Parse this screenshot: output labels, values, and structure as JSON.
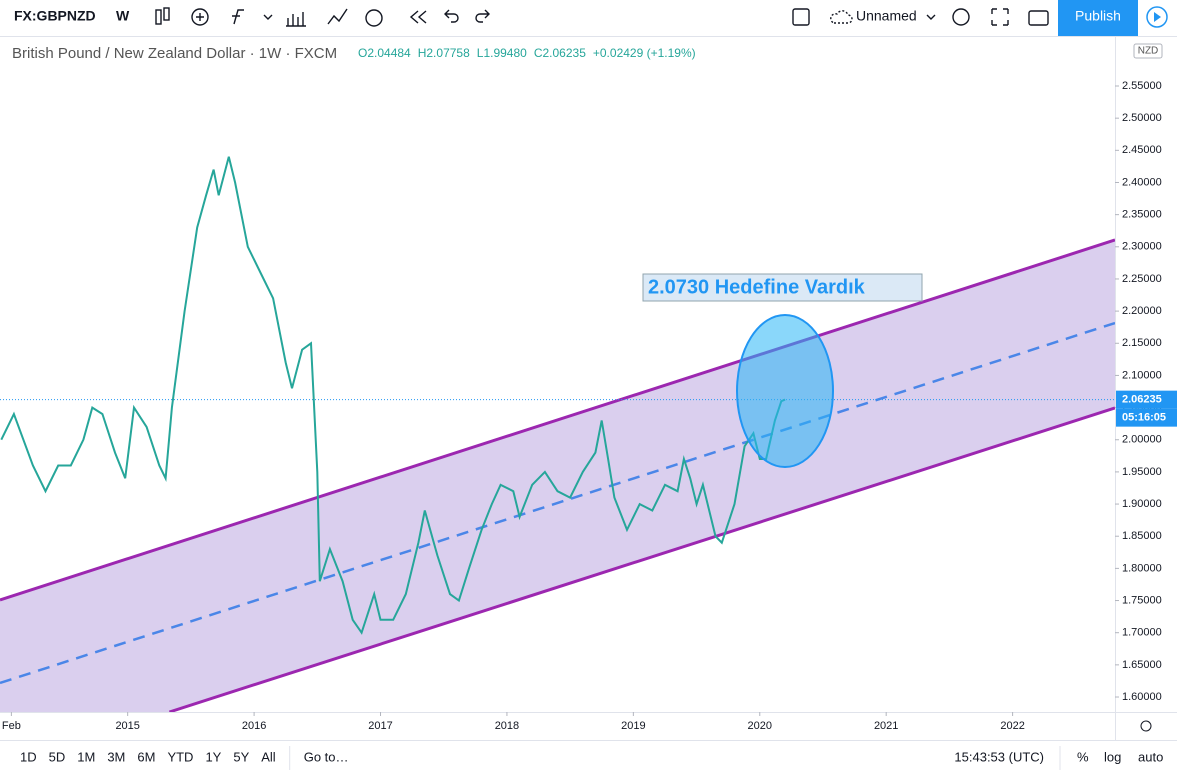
{
  "toolbar": {
    "symbol": "FX:GBPNZD",
    "interval": "W",
    "layout_name": "Unnamed",
    "publish": "Publish"
  },
  "chart_data": {
    "type": "line",
    "title": "British Pound / New Zealand Dollar · 1W · FXCM",
    "ohlc": {
      "open": "O2.04484",
      "high": "H2.07758",
      "low": "L1.99480",
      "close": "C2.06235",
      "change": "+0.02429 (+1.19%)"
    },
    "currency": "NZD",
    "color": "#26a69a",
    "x": [
      2014.0,
      2014.1,
      2014.25,
      2014.35,
      2014.45,
      2014.55,
      2014.65,
      2014.72,
      2014.8,
      2014.9,
      2014.98,
      2015.05,
      2015.15,
      2015.25,
      2015.3,
      2015.35,
      2015.45,
      2015.55,
      2015.62,
      2015.68,
      2015.72,
      2015.8,
      2015.85,
      2015.95,
      2016.05,
      2016.15,
      2016.25,
      2016.3,
      2016.38,
      2016.45,
      2016.5,
      2016.52,
      2016.6,
      2016.7,
      2016.78,
      2016.85,
      2016.95,
      2017.0,
      2017.1,
      2017.2,
      2017.3,
      2017.35,
      2017.45,
      2017.55,
      2017.62,
      2017.7,
      2017.8,
      2017.88,
      2017.95,
      2018.05,
      2018.1,
      2018.2,
      2018.3,
      2018.4,
      2018.5,
      2018.6,
      2018.7,
      2018.75,
      2018.8,
      2018.85,
      2018.95,
      2019.05,
      2019.15,
      2019.25,
      2019.35,
      2019.4,
      2019.45,
      2019.5,
      2019.55,
      2019.65,
      2019.7,
      2019.8,
      2019.88,
      2019.95,
      2020.0,
      2020.05,
      2020.12,
      2020.17,
      2020.2
    ],
    "values": [
      2.0,
      2.04,
      1.96,
      1.92,
      1.96,
      1.96,
      2.0,
      2.05,
      2.04,
      1.98,
      1.94,
      2.05,
      2.02,
      1.96,
      1.94,
      2.05,
      2.2,
      2.33,
      2.38,
      2.42,
      2.38,
      2.44,
      2.4,
      2.3,
      2.26,
      2.22,
      2.12,
      2.08,
      2.14,
      2.15,
      1.95,
      1.78,
      1.83,
      1.78,
      1.72,
      1.7,
      1.76,
      1.72,
      1.72,
      1.76,
      1.84,
      1.89,
      1.82,
      1.76,
      1.75,
      1.8,
      1.86,
      1.9,
      1.93,
      1.92,
      1.88,
      1.93,
      1.95,
      1.92,
      1.91,
      1.95,
      1.98,
      2.03,
      1.97,
      1.91,
      1.86,
      1.9,
      1.89,
      1.93,
      1.92,
      1.97,
      1.94,
      1.9,
      1.93,
      1.85,
      1.84,
      1.9,
      1.99,
      2.01,
      1.97,
      1.97,
      2.03,
      2.06,
      2.06235
    ],
    "last_price": {
      "value": 2.06235,
      "label": "2.06235"
    },
    "countdown": "05:16:05",
    "channel": {
      "upper": {
        "x": [
          2013.99,
          2022.81
        ],
        "values": [
          1.751,
          2.3106
        ]
      },
      "middle": {
        "x": [
          2013.99,
          2022.81
        ],
        "values": [
          1.6218,
          2.1815
        ]
      },
      "lower": {
        "x": [
          2015.33,
          2022.81
        ],
        "values": [
          1.5767,
          2.0494
        ]
      }
    },
    "annotation": "2.0730 Hedefine Vardık",
    "xlim": [
      2013.99,
      2022.81
    ],
    "xticks": [
      {
        "value": 2014.08,
        "label": "Feb"
      },
      2015,
      2016,
      2017,
      2018,
      2019,
      2020,
      2021,
      2022
    ],
    "ylim": [
      1.5767,
      2.6262
    ],
    "yticks": [
      {
        "value": 1.6,
        "label": "1.60000"
      },
      {
        "value": 1.65,
        "label": "1.65000"
      },
      {
        "value": 1.7,
        "label": "1.70000"
      },
      {
        "value": 1.75,
        "label": "1.75000"
      },
      {
        "value": 1.8,
        "label": "1.80000"
      },
      {
        "value": 1.85,
        "label": "1.85000"
      },
      {
        "value": 1.9,
        "label": "1.90000"
      },
      {
        "value": 1.95,
        "label": "1.95000"
      },
      {
        "value": 2.0,
        "label": "2.00000"
      },
      {
        "value": 2.05,
        "label": "2.05000"
      },
      {
        "value": 2.1,
        "label": "2.10000"
      },
      {
        "value": 2.15,
        "label": "2.15000"
      },
      {
        "value": 2.2,
        "label": "2.20000"
      },
      {
        "value": 2.25,
        "label": "2.25000"
      },
      {
        "value": 2.3,
        "label": "2.30000"
      },
      {
        "value": 2.35,
        "label": "2.35000"
      },
      {
        "value": 2.4,
        "label": "2.40000"
      },
      {
        "value": 2.45,
        "label": "2.45000"
      },
      {
        "value": 2.5,
        "label": "2.50000"
      },
      {
        "value": 2.55,
        "label": "2.55000"
      }
    ]
  },
  "bottom_bar": {
    "ranges": [
      "1D",
      "5D",
      "1M",
      "3M",
      "6M",
      "YTD",
      "1Y",
      "5Y",
      "All"
    ],
    "goto": "Go to…",
    "clock": "15:43:53 (UTC)",
    "percent": "%",
    "log": "log",
    "auto": "auto"
  }
}
